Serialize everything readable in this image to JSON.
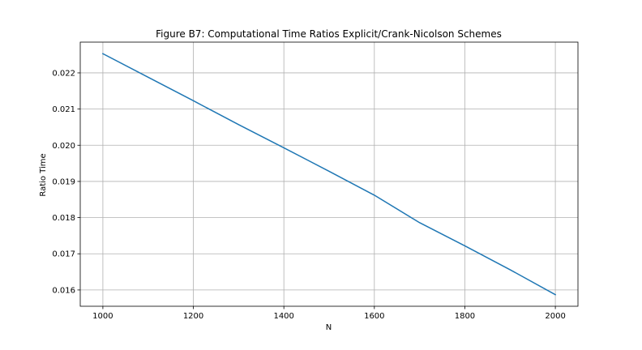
{
  "chart_data": {
    "type": "line",
    "title": "Figure B7: Computational Time Ratios  Explicit/Crank-Nicolson Schemes",
    "xlabel": "N",
    "ylabel": "Ratio Time",
    "xlim": [
      950,
      2050
    ],
    "ylim": [
      0.01555,
      0.02285
    ],
    "xticks": [
      1000,
      1200,
      1400,
      1600,
      1800,
      2000
    ],
    "xtick_labels": [
      "1000",
      "1200",
      "1400",
      "1600",
      "1800",
      "2000"
    ],
    "yticks": [
      0.016,
      0.017,
      0.018,
      0.019,
      0.02,
      0.021,
      0.022
    ],
    "ytick_labels": [
      "0.016",
      "0.017",
      "0.018",
      "0.019",
      "0.020",
      "0.021",
      "0.022"
    ],
    "grid": true,
    "series": [
      {
        "color": "#1f77b4",
        "x": [
          1000,
          1100,
          1200,
          1300,
          1400,
          1500,
          1600,
          1700,
          1800,
          1900,
          2000
        ],
        "y": [
          0.02253,
          0.02188,
          0.02123,
          0.02057,
          0.01993,
          0.01928,
          0.01862,
          0.01786,
          0.01722,
          0.01656,
          0.01587
        ]
      }
    ]
  }
}
